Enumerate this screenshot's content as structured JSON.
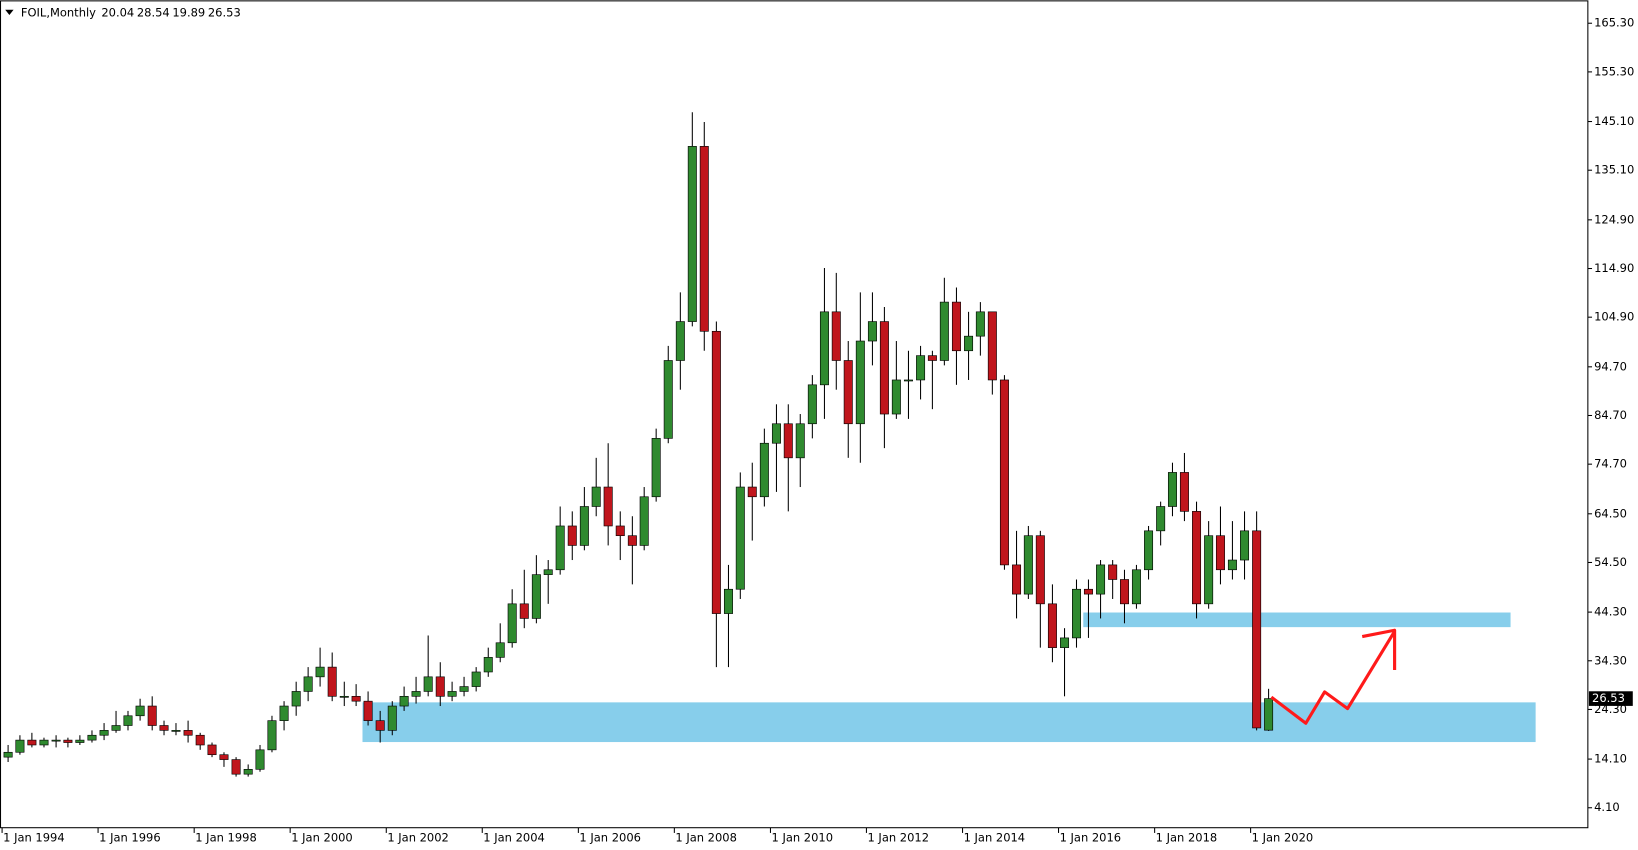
{
  "header": {
    "symbol": "FOIL,Monthly"
  },
  "chart_data": {
    "type": "candlestick",
    "x": [
      "1994-01-01",
      "1994-04-01",
      "1994-07-01",
      "1994-10-01",
      "1995-01-01",
      "1995-04-01",
      "1995-07-01",
      "1995-10-01",
      "1996-01-01",
      "1996-04-01",
      "1996-07-01",
      "1996-10-01",
      "1997-01-01",
      "1997-04-01",
      "1997-07-01",
      "1997-10-01",
      "1998-01-01",
      "1998-04-01",
      "1998-07-01",
      "1998-10-01",
      "1999-01-01",
      "1999-04-01",
      "1999-07-01",
      "1999-10-01",
      "2000-01-01",
      "2000-04-01",
      "2000-07-01",
      "2000-10-01",
      "2001-01-01",
      "2001-04-01",
      "2001-07-01",
      "2001-10-01",
      "2002-01-01",
      "2002-04-01",
      "2002-07-01",
      "2002-10-01",
      "2003-01-01",
      "2003-04-01",
      "2003-07-01",
      "2003-10-01",
      "2004-01-01",
      "2004-04-01",
      "2004-07-01",
      "2004-10-01",
      "2005-01-01",
      "2005-04-01",
      "2005-07-01",
      "2005-10-01",
      "2006-01-01",
      "2006-04-01",
      "2006-07-01",
      "2006-10-01",
      "2007-01-01",
      "2007-04-01",
      "2007-07-01",
      "2007-10-01",
      "2008-01-01",
      "2008-04-01",
      "2008-07-01",
      "2008-10-01",
      "2009-01-01",
      "2009-04-01",
      "2009-07-01",
      "2009-10-01",
      "2010-01-01",
      "2010-04-01",
      "2010-07-01",
      "2010-10-01",
      "2011-01-01",
      "2011-04-01",
      "2011-07-01",
      "2011-10-01",
      "2012-01-01",
      "2012-04-01",
      "2012-07-01",
      "2012-10-01",
      "2013-01-01",
      "2013-04-01",
      "2013-07-01",
      "2013-10-01",
      "2014-01-01",
      "2014-04-01",
      "2014-07-01",
      "2014-10-01",
      "2015-01-01",
      "2015-04-01",
      "2015-07-01",
      "2015-10-01",
      "2016-01-01",
      "2016-04-01",
      "2016-07-01",
      "2016-10-01",
      "2017-01-01",
      "2017-04-01",
      "2017-07-01",
      "2017-10-01",
      "2018-01-01",
      "2018-04-01",
      "2018-07-01",
      "2018-10-01",
      "2019-01-01",
      "2019-04-01",
      "2019-07-01",
      "2019-10-01",
      "2020-01-01",
      "2020-04-01"
    ],
    "open": [
      14.5,
      15.5,
      18,
      17,
      18,
      18,
      17.5,
      18,
      19,
      20,
      21,
      23,
      25,
      21,
      20,
      20,
      19,
      17,
      15,
      14,
      11,
      12,
      16,
      22,
      25,
      28,
      31,
      33,
      27,
      27,
      26,
      22,
      20,
      25,
      27,
      28,
      31,
      27,
      28,
      29,
      32,
      35,
      38,
      46,
      43,
      52,
      53,
      62,
      58,
      66,
      70,
      62,
      60,
      58,
      68,
      80,
      96,
      104,
      140,
      102,
      44,
      49,
      70,
      68,
      79,
      83,
      76,
      83,
      91,
      106,
      96,
      83,
      100,
      104,
      85,
      92,
      92,
      97,
      96,
      108,
      98,
      101,
      106,
      92,
      54,
      48,
      60,
      46,
      37,
      39,
      49,
      48,
      54,
      51,
      46,
      53,
      61,
      66,
      73,
      65,
      46,
      60,
      53,
      55,
      61,
      20.04
    ],
    "high": [
      17,
      19,
      19.5,
      18.5,
      19,
      18.5,
      19,
      20,
      21.5,
      24,
      24,
      26.5,
      27,
      22,
      21.5,
      22,
      19.5,
      17.5,
      15.5,
      14.5,
      13,
      17,
      23,
      26,
      30,
      33,
      37,
      36,
      30,
      29.5,
      28,
      24,
      26,
      29,
      31,
      39.5,
      34,
      30,
      31,
      33,
      37,
      42,
      49,
      53,
      56,
      55,
      66,
      65,
      70,
      76,
      79,
      65,
      64,
      70,
      82,
      99,
      110,
      147,
      145,
      104,
      54,
      73,
      75,
      82,
      87,
      87,
      85,
      93,
      115,
      114,
      100,
      110,
      110,
      107,
      100,
      98,
      99,
      98,
      113,
      111,
      106,
      108,
      106,
      93,
      61,
      62,
      61,
      50,
      41,
      51,
      51,
      55,
      55,
      53,
      54,
      62,
      67,
      75,
      77,
      67,
      63,
      66,
      63,
      65,
      65,
      28.54
    ],
    "low": [
      13.5,
      15,
      16.5,
      16.5,
      16.5,
      16.5,
      17,
      17.5,
      18,
      19.5,
      20,
      22,
      20,
      19,
      19,
      17.5,
      16,
      14.5,
      12.5,
      10.5,
      10.5,
      11.5,
      15.5,
      20,
      23,
      26,
      29,
      26,
      25,
      25,
      21,
      17.5,
      19,
      24,
      25.5,
      27,
      25,
      26,
      27,
      28,
      31,
      34,
      37,
      41,
      42,
      46,
      52,
      55,
      57,
      64,
      58,
      55,
      50,
      57,
      67,
      79,
      90,
      103,
      98,
      33,
      33,
      47,
      59,
      66,
      69,
      65,
      70,
      80,
      84,
      90,
      76,
      75,
      95,
      78,
      84,
      84,
      88,
      86,
      95,
      91,
      92,
      97,
      89,
      53,
      43,
      47,
      37,
      34,
      27,
      37,
      39,
      43,
      47,
      42,
      45,
      51,
      58,
      64,
      63,
      43,
      45,
      50,
      51,
      51,
      20,
      19.89
    ],
    "close": [
      15.5,
      18,
      17,
      18,
      18,
      17.5,
      18,
      19,
      20,
      21,
      23,
      25,
      21,
      20,
      20,
      19,
      17,
      15,
      14,
      11,
      12,
      16,
      22,
      25,
      28,
      31,
      33,
      27,
      27,
      26,
      22,
      20,
      25,
      27,
      28,
      31,
      27,
      28,
      29,
      32,
      35,
      38,
      46,
      43,
      52,
      53,
      62,
      58,
      66,
      70,
      62,
      60,
      58,
      68,
      80,
      96,
      104,
      140,
      102,
      44,
      49,
      70,
      68,
      79,
      83,
      76,
      83,
      91,
      106,
      96,
      83,
      100,
      104,
      85,
      92,
      92,
      97,
      96,
      108,
      98,
      101,
      106,
      92,
      54,
      48,
      60,
      46,
      37,
      39,
      49,
      48,
      54,
      51,
      46,
      53,
      61,
      66,
      73,
      65,
      46,
      60,
      53,
      55,
      61,
      20.5,
      26.53
    ],
    "up_color": "#2f8a2f",
    "down_color": "#c0151c",
    "wick_color": "#000000",
    "xlim": [
      "1994-01-01",
      "2027-01-01"
    ],
    "xticks": [
      {
        "value": "1994-01-01",
        "label": "1 Jan 1994"
      },
      {
        "value": "1996-01-01",
        "label": "1 Jan 1996"
      },
      {
        "value": "1998-01-01",
        "label": "1 Jan 1998"
      },
      {
        "value": "2000-01-01",
        "label": "1 Jan 2000"
      },
      {
        "value": "2002-01-01",
        "label": "1 Jan 2002"
      },
      {
        "value": "2004-01-01",
        "label": "1 Jan 2004"
      },
      {
        "value": "2006-01-01",
        "label": "1 Jan 2006"
      },
      {
        "value": "2008-01-01",
        "label": "1 Jan 2008"
      },
      {
        "value": "2010-01-01",
        "label": "1 Jan 2010"
      },
      {
        "value": "2012-01-01",
        "label": "1 Jan 2012"
      },
      {
        "value": "2014-01-01",
        "label": "1 Jan 2014"
      },
      {
        "value": "2016-01-01",
        "label": "1 Jan 2016"
      },
      {
        "value": "2018-01-01",
        "label": "1 Jan 2018"
      },
      {
        "value": "2020-01-01",
        "label": "1 Jan 2020"
      }
    ],
    "ylim": [
      0,
      170
    ],
    "yticks": [
      {
        "value": 4.1,
        "label": "4.10"
      },
      {
        "value": 14.1,
        "label": "14.10"
      },
      {
        "value": 24.3,
        "label": "24.30"
      },
      {
        "value": 34.3,
        "label": "34.30"
      },
      {
        "value": 44.3,
        "label": "44.30"
      },
      {
        "value": 54.5,
        "label": "54.50"
      },
      {
        "value": 64.5,
        "label": "64.50"
      },
      {
        "value": 74.7,
        "label": "74.70"
      },
      {
        "value": 84.7,
        "label": "84.70"
      },
      {
        "value": 94.7,
        "label": "94.70"
      },
      {
        "value": 104.9,
        "label": "104.90"
      },
      {
        "value": 114.9,
        "label": "114.90"
      },
      {
        "value": 124.9,
        "label": "124.90"
      },
      {
        "value": 135.1,
        "label": "135.10"
      },
      {
        "value": 145.1,
        "label": "145.10"
      },
      {
        "value": 155.3,
        "label": "155.30"
      },
      {
        "value": 165.3,
        "label": "165.30"
      }
    ],
    "grid": false
  }
}
